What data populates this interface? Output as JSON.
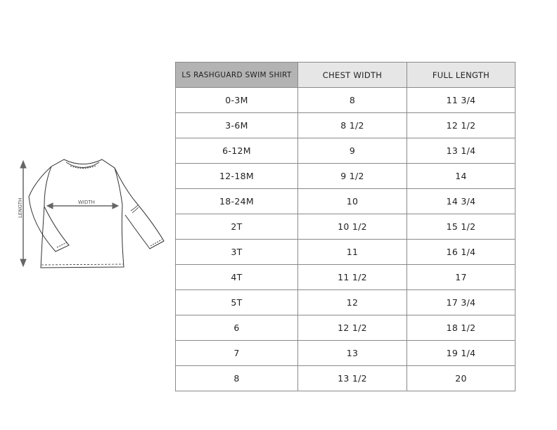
{
  "diagram": {
    "length_label": "LENGTH",
    "width_label": "WIDTH"
  },
  "table": {
    "headers": [
      "LS RASHGUARD SWIM SHIRT",
      "CHEST WIDTH",
      "FULL LENGTH"
    ],
    "rows": [
      [
        "0-3M",
        "8",
        "11 3/4"
      ],
      [
        "3-6M",
        "8 1/2",
        "12 1/2"
      ],
      [
        "6-12M",
        "9",
        "13 1/4"
      ],
      [
        "12-18M",
        "9 1/2",
        "14"
      ],
      [
        "18-24M",
        "10",
        "14 3/4"
      ],
      [
        "2T",
        "10 1/2",
        "15 1/2"
      ],
      [
        "3T",
        "11",
        "16 1/4"
      ],
      [
        "4T",
        "11 1/2",
        "17"
      ],
      [
        "5T",
        "12",
        "17 3/4"
      ],
      [
        "6",
        "12 1/2",
        "18 1/2"
      ],
      [
        "7",
        "13",
        "19 1/4"
      ],
      [
        "8",
        "13 1/2",
        "20"
      ]
    ]
  }
}
